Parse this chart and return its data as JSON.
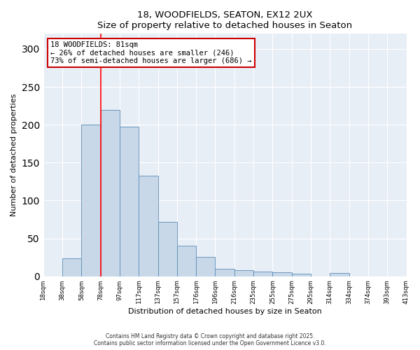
{
  "title": "18, WOODFIELDS, SEATON, EX12 2UX",
  "subtitle": "Size of property relative to detached houses in Seaton",
  "xlabel": "Distribution of detached houses by size in Seaton",
  "ylabel": "Number of detached properties",
  "bar_color": "#c8d8e8",
  "bar_edge_color": "#5b8db8",
  "bar_values": [
    0,
    24,
    200,
    220,
    197,
    133,
    72,
    40,
    26,
    10,
    8,
    6,
    5,
    3,
    0,
    4,
    0,
    0,
    0
  ],
  "bin_labels": [
    "18sqm",
    "38sqm",
    "58sqm",
    "78sqm",
    "97sqm",
    "117sqm",
    "137sqm",
    "157sqm",
    "176sqm",
    "196sqm",
    "216sqm",
    "235sqm",
    "255sqm",
    "275sqm",
    "295sqm",
    "314sqm",
    "334sqm",
    "374sqm",
    "393sqm",
    "413sqm"
  ],
  "red_line_x": 3.0,
  "annotation_text": "18 WOODFIELDS: 81sqm\n← 26% of detached houses are smaller (246)\n73% of semi-detached houses are larger (686) →",
  "annotation_box_color": "#ffffff",
  "annotation_box_edge": "#cc0000",
  "ylim": [
    0,
    320
  ],
  "yticks": [
    0,
    50,
    100,
    150,
    200,
    250,
    300
  ],
  "footer": "Contains HM Land Registry data © Crown copyright and database right 2025.\nContains public sector information licensed under the Open Government Licence v3.0.",
  "background_color": "#e8eef6",
  "fig_bg_color": "#ffffff"
}
